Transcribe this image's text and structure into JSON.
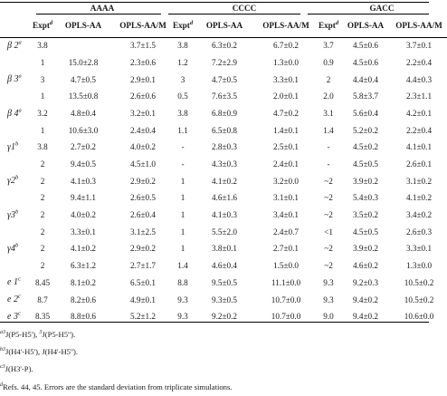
{
  "groups": [
    "AAAA",
    "CCCC",
    "GACC"
  ],
  "columns": {
    "expt": "Expt",
    "expt_mark": "d",
    "opls_aa": "OPLS-AA",
    "opls_aam": "OPLS-AA/M"
  },
  "rows": [
    {
      "label": "β 2",
      "mark": "a",
      "cells": [
        "3.8",
        "",
        "3.7±1.5",
        "3.8",
        "6.3±0.2",
        "6.7±0.2",
        "3.7",
        "4.5±0.6",
        "3.7±0.1"
      ]
    },
    {
      "label": "",
      "mark": "",
      "cells": [
        "1",
        "15.0±2.8",
        "2.3±0.6",
        "1.2",
        "7.2±2.9",
        "1.3±0.0",
        "0.9",
        "4.5±0.6",
        "2.2±0.4"
      ]
    },
    {
      "label": "β 3",
      "mark": "a",
      "cells": [
        "3",
        "4.7±0.5",
        "2.9±0.1",
        "3",
        "4.7±0.5",
        "3.3±0.1",
        "2",
        "4.4±0.4",
        "4.4±0.3"
      ]
    },
    {
      "label": "",
      "mark": "",
      "cells": [
        "1",
        "13.5±0.8",
        "2.6±0.6",
        "0.5",
        "7.6±3.5",
        "2.0±0.1",
        "2.0",
        "5.8±3.7",
        "2.3±1.1"
      ]
    },
    {
      "label": "β 4",
      "mark": "a",
      "cells": [
        "3.2",
        "4.8±0.4",
        "3.2±0.1",
        "3.8",
        "6.8±0.9",
        "4.7±0.2",
        "3.1",
        "5.6±0.4",
        "4.2±0.1"
      ]
    },
    {
      "label": "",
      "mark": "",
      "cells": [
        "1",
        "10.6±3.0",
        "2.4±0.4",
        "1.1",
        "6.5±0.8",
        "1.4±0.1",
        "1.4",
        "5.2±0.2",
        "2.2±0.4"
      ]
    },
    {
      "label": "γ1",
      "mark": "b",
      "cells": [
        "3.8",
        "2.7±0.2",
        "4.0±0.2",
        "-",
        "2.8±0.3",
        "2.5±0.1",
        "-",
        "4.5±0.2",
        "4.1±0.1"
      ]
    },
    {
      "label": "",
      "mark": "",
      "cells": [
        "2",
        "9.4±0.5",
        "4.5±1.0",
        "-",
        "4.3±0.3",
        "2.4±0.1",
        "-",
        "4.5±0.5",
        "2.6±0.1"
      ]
    },
    {
      "label": "γ2",
      "mark": "b",
      "cells": [
        "2",
        "4.1±0.3",
        "2.9±0.2",
        "1",
        "4.1±0.2",
        "3.2±0.0",
        "~2",
        "3.9±0.2",
        "3.1±0.2"
      ]
    },
    {
      "label": "",
      "mark": "",
      "cells": [
        "2",
        "9.4±1.1",
        "2.6±0.5",
        "1",
        "4.6±1.6",
        "3.1±0.1",
        "~2",
        "5.4±0.3",
        "4.1±0.2"
      ]
    },
    {
      "label": "γ3",
      "mark": "b",
      "cells": [
        "2",
        "4.0±0.2",
        "2.6±0.4",
        "1",
        "4.1±0.3",
        "3.4±0.1",
        "~2",
        "3.5±0.2",
        "3.4±0.2"
      ]
    },
    {
      "label": "",
      "mark": "",
      "cells": [
        "2",
        "3.3±0.1",
        "3.1±2.5",
        "1",
        "5.5±2.0",
        "2.4±0.7",
        "<1",
        "4.5±0.5",
        "2.6±0.3"
      ]
    },
    {
      "label": "γ4",
      "mark": "b",
      "cells": [
        "2",
        "4.1±0.2",
        "2.9±0.2",
        "1",
        "3.8±0.1",
        "2.7±0.1",
        "~2",
        "3.9±0.2",
        "3.3±0.1"
      ]
    },
    {
      "label": "",
      "mark": "",
      "cells": [
        "2",
        "6.3±1.2",
        "2.7±1.7",
        "1.4",
        "4.6±0.4",
        "1.5±0.0",
        "~2",
        "4.6±0.2",
        "1.3±0.0"
      ]
    },
    {
      "label": "e 1",
      "mark": "c",
      "cells": [
        "8.45",
        "8.1±0.2",
        "6.5±0.1",
        "8.8",
        "9.5±0.5",
        "11.1±0.0",
        "9.3",
        "9.2±0.3",
        "10.5±0.2"
      ]
    },
    {
      "label": "e 2",
      "mark": "c",
      "cells": [
        "8.7",
        "8.2±0.6",
        "4.9±0.1",
        "9.3",
        "9.3±0.5",
        "10.7±0.0",
        "9.3",
        "9.4±0.2",
        "10.5±0.2"
      ]
    },
    {
      "label": "e 3",
      "mark": "c",
      "cells": [
        "8.35",
        "8.8±0.6",
        "5.2±1.2",
        "9.3",
        "9.2±0.2",
        "10.7±0.0",
        "9.0",
        "9.4±0.2",
        "10.6±0.0"
      ]
    }
  ],
  "footnotes": [
    {
      "mark": "a",
      "parts": [
        {
          "t": "3",
          "s": true
        },
        {
          "t": "J(P5-H5')",
          "s": false
        },
        {
          "t": ", ",
          "s": false
        },
        {
          "t": "3",
          "s": true
        },
        {
          "t": "J(P5-H5'')",
          "s": false
        },
        {
          "t": ".",
          "s": false
        }
      ]
    },
    {
      "mark": "b",
      "parts": [
        {
          "t": "3",
          "s": true
        },
        {
          "t": "J(H4'-H5'), J(H4'-H5'').",
          "s": false
        }
      ]
    },
    {
      "mark": "c",
      "parts": [
        {
          "t": "3",
          "s": true
        },
        {
          "t": "J(H3'-P).",
          "s": false
        }
      ]
    },
    {
      "mark": "d",
      "parts": [
        {
          "t": "Refs. 44, 45. Errors are the standard deviation from triplicate simulations.",
          "s": false
        }
      ]
    }
  ]
}
